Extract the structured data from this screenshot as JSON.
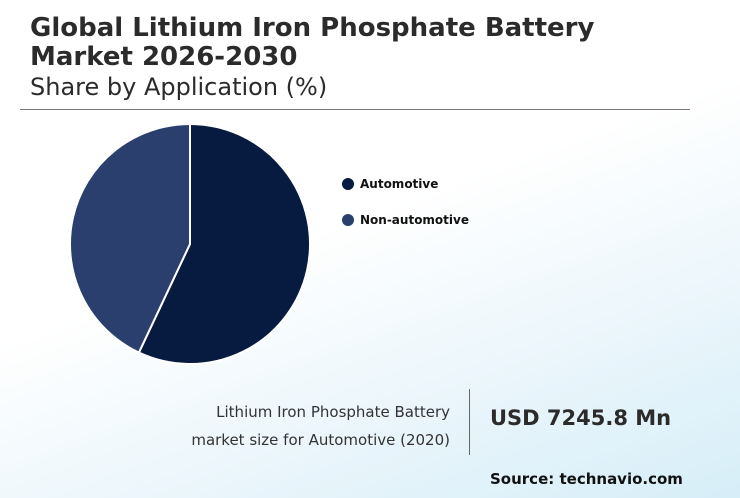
{
  "header": {
    "title": "Global Lithium Iron Phosphate Battery Market 2026-2030",
    "subtitle": "Share by Application (%)"
  },
  "chart_data": {
    "type": "pie",
    "categories": [
      "Automotive",
      "Non-automotive"
    ],
    "values": [
      57,
      43
    ],
    "colors": [
      "#071a3f",
      "#2a3f6e"
    ],
    "start_angle_deg": 0,
    "legend": "right"
  },
  "kpi": {
    "description_line1": "Lithium Iron Phosphate Battery",
    "description_line2": "market size for Automotive (2020)",
    "value": "USD 7245.8 Mn"
  },
  "source": "Source: technavio.com"
}
